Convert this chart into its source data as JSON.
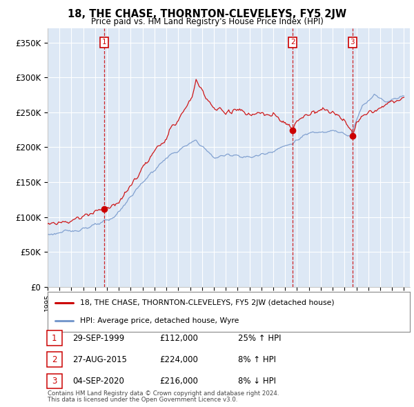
{
  "title": "18, THE CHASE, THORNTON-CLEVELEYS, FY5 2JW",
  "subtitle": "Price paid vs. HM Land Registry's House Price Index (HPI)",
  "ylim": [
    0,
    370000
  ],
  "yticks": [
    0,
    50000,
    100000,
    150000,
    200000,
    250000,
    300000,
    350000
  ],
  "ytick_labels": [
    "£0",
    "£50K",
    "£100K",
    "£150K",
    "£200K",
    "£250K",
    "£300K",
    "£350K"
  ],
  "red_color": "#cc0000",
  "blue_color": "#7799cc",
  "vline_color": "#cc0000",
  "grid_color": "#bbbbcc",
  "chart_bg": "#dde8f5",
  "bg_color": "#ffffff",
  "sale_dates_year": [
    1999.747,
    2015.647,
    2020.676
  ],
  "sale_prices": [
    112000,
    224000,
    216000
  ],
  "sale_labels": [
    "1",
    "2",
    "3"
  ],
  "sale_date_strs": [
    "29-SEP-1999",
    "27-AUG-2015",
    "04-SEP-2020"
  ],
  "sale_prices_str": [
    "£112,000",
    "£224,000",
    "£216,000"
  ],
  "sale_pct": [
    "25% ↑ HPI",
    "8% ↑ HPI",
    "8% ↓ HPI"
  ],
  "legend_line1": "18, THE CHASE, THORNTON-CLEVELEYS, FY5 2JW (detached house)",
  "legend_line2": "HPI: Average price, detached house, Wyre",
  "footer1": "Contains HM Land Registry data © Crown copyright and database right 2024.",
  "footer2": "This data is licensed under the Open Government Licence v3.0.",
  "xmin": 1995.0,
  "xmax": 2025.5
}
